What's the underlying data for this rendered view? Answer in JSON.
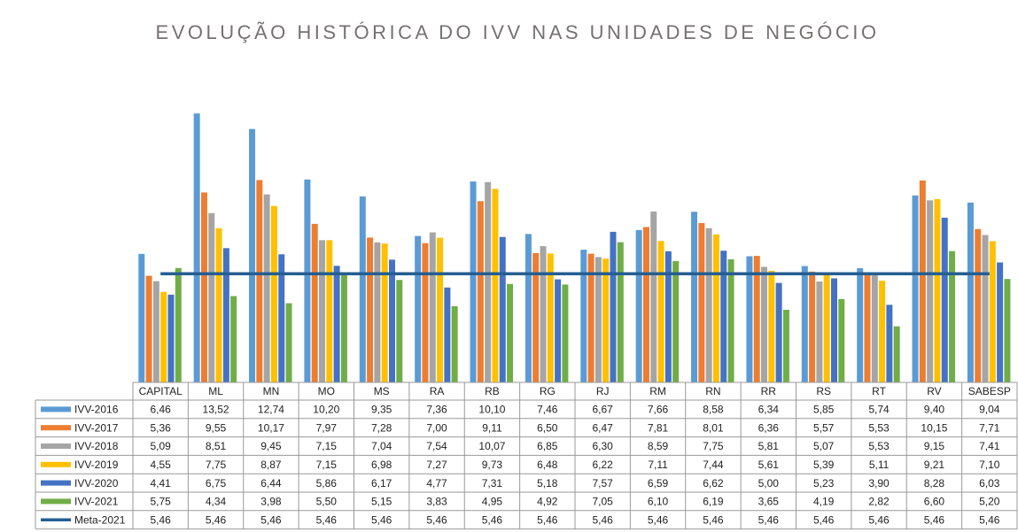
{
  "chart_data": {
    "type": "bar",
    "title": "EVOLUÇÃO HISTÓRICA DO IVV NAS UNIDADES DE NEGÓCIO",
    "categories": [
      "CAPITAL",
      "ML",
      "MN",
      "MO",
      "MS",
      "RA",
      "RB",
      "RG",
      "RJ",
      "RM",
      "RN",
      "RR",
      "RS",
      "RT",
      "RV",
      "SABESP"
    ],
    "ylim": [
      0,
      19
    ],
    "series": [
      {
        "name": "IVV-2016",
        "color": "#5b9bd5",
        "values": [
          6.46,
          13.52,
          12.74,
          10.2,
          9.35,
          7.36,
          10.1,
          7.46,
          6.67,
          7.66,
          8.58,
          6.34,
          5.85,
          5.74,
          9.4,
          9.04
        ],
        "value_labels": [
          "6,46",
          "13,52",
          "12,74",
          "10,20",
          "9,35",
          "7,36",
          "10,10",
          "7,46",
          "6,67",
          "7,66",
          "8,58",
          "6,34",
          "5,85",
          "5,74",
          "9,40",
          "9,04"
        ]
      },
      {
        "name": "IVV-2017",
        "color": "#ed7d31",
        "values": [
          5.36,
          9.55,
          10.17,
          7.97,
          7.28,
          7.0,
          9.11,
          6.5,
          6.47,
          7.81,
          8.01,
          6.36,
          5.57,
          5.53,
          10.15,
          7.71
        ],
        "value_labels": [
          "5,36",
          "9,55",
          "10,17",
          "7,97",
          "7,28",
          "7,00",
          "9,11",
          "6,50",
          "6,47",
          "7,81",
          "8,01",
          "6,36",
          "5,57",
          "5,53",
          "10,15",
          "7,71"
        ]
      },
      {
        "name": "IVV-2018",
        "color": "#a5a5a5",
        "values": [
          5.09,
          8.51,
          9.45,
          7.15,
          7.04,
          7.54,
          10.07,
          6.85,
          6.3,
          8.59,
          7.75,
          5.81,
          5.07,
          5.53,
          9.15,
          7.41
        ],
        "value_labels": [
          "5,09",
          "8,51",
          "9,45",
          "7,15",
          "7,04",
          "7,54",
          "10,07",
          "6,85",
          "6,30",
          "8,59",
          "7,75",
          "5,81",
          "5,07",
          "5,53",
          "9,15",
          "7,41"
        ]
      },
      {
        "name": "IVV-2019",
        "color": "#ffc000",
        "values": [
          4.55,
          7.75,
          8.87,
          7.15,
          6.98,
          7.27,
          9.73,
          6.48,
          6.22,
          7.11,
          7.44,
          5.61,
          5.39,
          5.11,
          9.21,
          7.1
        ],
        "value_labels": [
          "4,55",
          "7,75",
          "8,87",
          "7,15",
          "6,98",
          "7,27",
          "9,73",
          "6,48",
          "6,22",
          "7,11",
          "7,44",
          "5,61",
          "5,39",
          "5,11",
          "9,21",
          "7,10"
        ]
      },
      {
        "name": "IVV-2020",
        "color": "#4472c4",
        "values": [
          4.41,
          6.75,
          6.44,
          5.86,
          6.17,
          4.77,
          7.31,
          5.18,
          7.57,
          6.59,
          6.62,
          5.0,
          5.23,
          3.9,
          8.28,
          6.03
        ],
        "value_labels": [
          "4,41",
          "6,75",
          "6,44",
          "5,86",
          "6,17",
          "4,77",
          "7,31",
          "5,18",
          "7,57",
          "6,59",
          "6,62",
          "5,00",
          "5,23",
          "3,90",
          "8,28",
          "6,03"
        ]
      },
      {
        "name": "IVV-2021",
        "color": "#70ad47",
        "values": [
          5.75,
          4.34,
          3.98,
          5.5,
          5.15,
          3.83,
          4.95,
          4.92,
          7.05,
          6.1,
          6.19,
          3.65,
          4.19,
          2.82,
          6.6,
          5.2
        ],
        "value_labels": [
          "5,75",
          "4,34",
          "3,98",
          "5,50",
          "5,15",
          "3,83",
          "4,95",
          "4,92",
          "7,05",
          "6,10",
          "6,19",
          "3,65",
          "4,19",
          "2,82",
          "6,60",
          "5,20"
        ]
      },
      {
        "name": "Meta-2021",
        "color": "#255e91",
        "type": "line",
        "values": [
          5.46,
          5.46,
          5.46,
          5.46,
          5.46,
          5.46,
          5.46,
          5.46,
          5.46,
          5.46,
          5.46,
          5.46,
          5.46,
          5.46,
          5.46,
          5.46
        ],
        "value_labels": [
          "5,46",
          "5,46",
          "5,46",
          "5,46",
          "5,46",
          "5,46",
          "5,46",
          "5,46",
          "5,46",
          "5,46",
          "5,46",
          "5,46",
          "5,46",
          "5,46",
          "5,46",
          "5,46"
        ]
      }
    ]
  }
}
